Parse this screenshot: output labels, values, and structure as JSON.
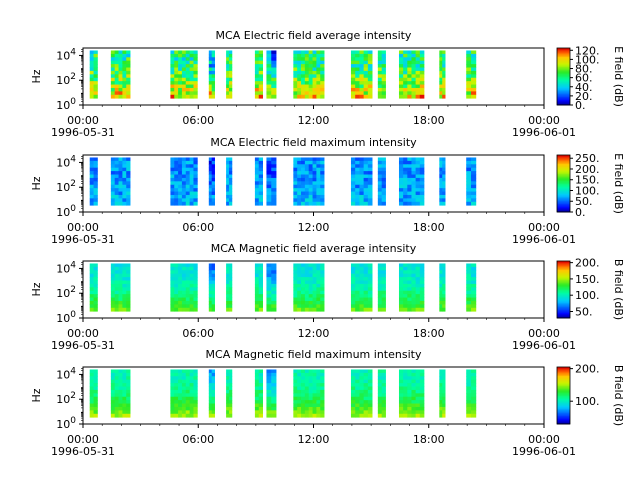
{
  "chart_data": [
    {
      "type": "heatmap",
      "title": "MCA  Electric field average intensity",
      "ylabel": "Hz",
      "y_tick_labels": [
        "10^0",
        "10^2",
        "10^4"
      ],
      "x_tick_labels": [
        "00:00",
        "06:00",
        "12:00",
        "18:00",
        "00:00"
      ],
      "x_date_labels": [
        "1996-05-31",
        "1996-06-01"
      ],
      "x_range": [
        "1996-05-31T00:00",
        "1996-06-01T00:00"
      ],
      "colorbar": {
        "label": "E field (dB)",
        "range": [
          0,
          125
        ],
        "tick_labels": [
          "0.",
          "20.",
          "40.",
          "60.",
          "80.",
          "100.",
          "120."
        ]
      },
      "data_intervals_hours": [
        [
          0.35,
          0.75
        ],
        [
          1.45,
          2.45
        ],
        [
          4.55,
          5.95
        ],
        [
          6.55,
          6.85
        ],
        [
          7.45,
          7.75
        ],
        [
          8.95,
          9.35
        ],
        [
          9.55,
          10.05
        ],
        [
          10.95,
          12.55
        ],
        [
          13.95,
          15.05
        ],
        [
          15.35,
          15.75
        ],
        [
          16.45,
          17.75
        ],
        [
          18.55,
          18.85
        ],
        [
          19.95,
          20.45
        ]
      ],
      "intensity_profile": {
        "base": 60,
        "low_freq_boost": 40,
        "var": 25
      }
    },
    {
      "type": "heatmap",
      "title": "MCA  Electric field maximum intensity",
      "ylabel": "Hz",
      "y_tick_labels": [
        "10^0",
        "10^2",
        "10^4"
      ],
      "x_tick_labels": [
        "00:00",
        "06:00",
        "12:00",
        "18:00",
        "00:00"
      ],
      "x_date_labels": [
        "1996-05-31",
        "1996-06-01"
      ],
      "x_range": [
        "1996-05-31T00:00",
        "1996-06-01T00:00"
      ],
      "colorbar": {
        "label": "E field (dB)",
        "range": [
          0,
          265
        ],
        "tick_labels": [
          "0.",
          "50.",
          "100.",
          "150.",
          "200.",
          "250."
        ]
      },
      "data_intervals_hours": [
        [
          0.35,
          0.75
        ],
        [
          1.45,
          2.45
        ],
        [
          4.55,
          5.95
        ],
        [
          6.55,
          6.85
        ],
        [
          7.45,
          7.75
        ],
        [
          8.95,
          9.35
        ],
        [
          9.55,
          10.05
        ],
        [
          10.95,
          12.55
        ],
        [
          13.95,
          15.05
        ],
        [
          15.35,
          15.75
        ],
        [
          16.45,
          17.75
        ],
        [
          18.55,
          18.85
        ],
        [
          19.95,
          20.45
        ]
      ],
      "intensity_profile": {
        "base": 65,
        "low_freq_boost": 10,
        "var": 25
      }
    },
    {
      "type": "heatmap",
      "title": "MCA  Magnetic field average intensity",
      "ylabel": "Hz",
      "y_tick_labels": [
        "10^0",
        "10^2",
        "10^4"
      ],
      "x_tick_labels": [
        "00:00",
        "06:00",
        "12:00",
        "18:00",
        "00:00"
      ],
      "x_date_labels": [
        "1996-05-31",
        "1996-06-01"
      ],
      "x_range": [
        "1996-05-31T00:00",
        "1996-06-01T00:00"
      ],
      "colorbar": {
        "label": "B field (dB)",
        "range": [
          30,
          205
        ],
        "tick_labels": [
          "50.",
          "100.",
          "150.",
          "200."
        ]
      },
      "data_intervals_hours": [
        [
          0.35,
          0.75
        ],
        [
          1.45,
          2.45
        ],
        [
          4.55,
          5.95
        ],
        [
          6.55,
          6.85
        ],
        [
          7.45,
          7.75
        ],
        [
          8.95,
          9.35
        ],
        [
          9.55,
          10.05
        ],
        [
          10.95,
          12.55
        ],
        [
          13.95,
          15.05
        ],
        [
          15.35,
          15.75
        ],
        [
          16.45,
          17.75
        ],
        [
          18.55,
          18.85
        ],
        [
          19.95,
          20.45
        ]
      ],
      "intensity_profile": {
        "base": 95,
        "low_freq_boost": 45,
        "var": 10
      }
    },
    {
      "type": "heatmap",
      "title": "MCA  Magnetic field maximum intensity",
      "ylabel": "Hz",
      "y_tick_labels": [
        "10^0",
        "10^2",
        "10^4"
      ],
      "x_tick_labels": [
        "00:00",
        "06:00",
        "12:00",
        "18:00",
        "00:00"
      ],
      "x_date_labels": [
        "1996-05-31",
        "1996-06-01"
      ],
      "x_range": [
        "1996-05-31T00:00",
        "1996-06-01T00:00"
      ],
      "colorbar": {
        "label": "B field (dB)",
        "range": [
          30,
          205
        ],
        "tick_labels": [
          "100.",
          "200."
        ]
      },
      "data_intervals_hours": [
        [
          0.35,
          0.75
        ],
        [
          1.45,
          2.45
        ],
        [
          4.55,
          5.95
        ],
        [
          6.55,
          6.85
        ],
        [
          7.45,
          7.75
        ],
        [
          8.95,
          9.35
        ],
        [
          9.55,
          10.05
        ],
        [
          10.95,
          12.55
        ],
        [
          13.95,
          15.05
        ],
        [
          15.35,
          15.75
        ],
        [
          16.45,
          17.75
        ],
        [
          18.55,
          18.85
        ],
        [
          19.95,
          20.45
        ]
      ],
      "intensity_profile": {
        "base": 105,
        "low_freq_boost": 45,
        "var": 10
      }
    }
  ]
}
